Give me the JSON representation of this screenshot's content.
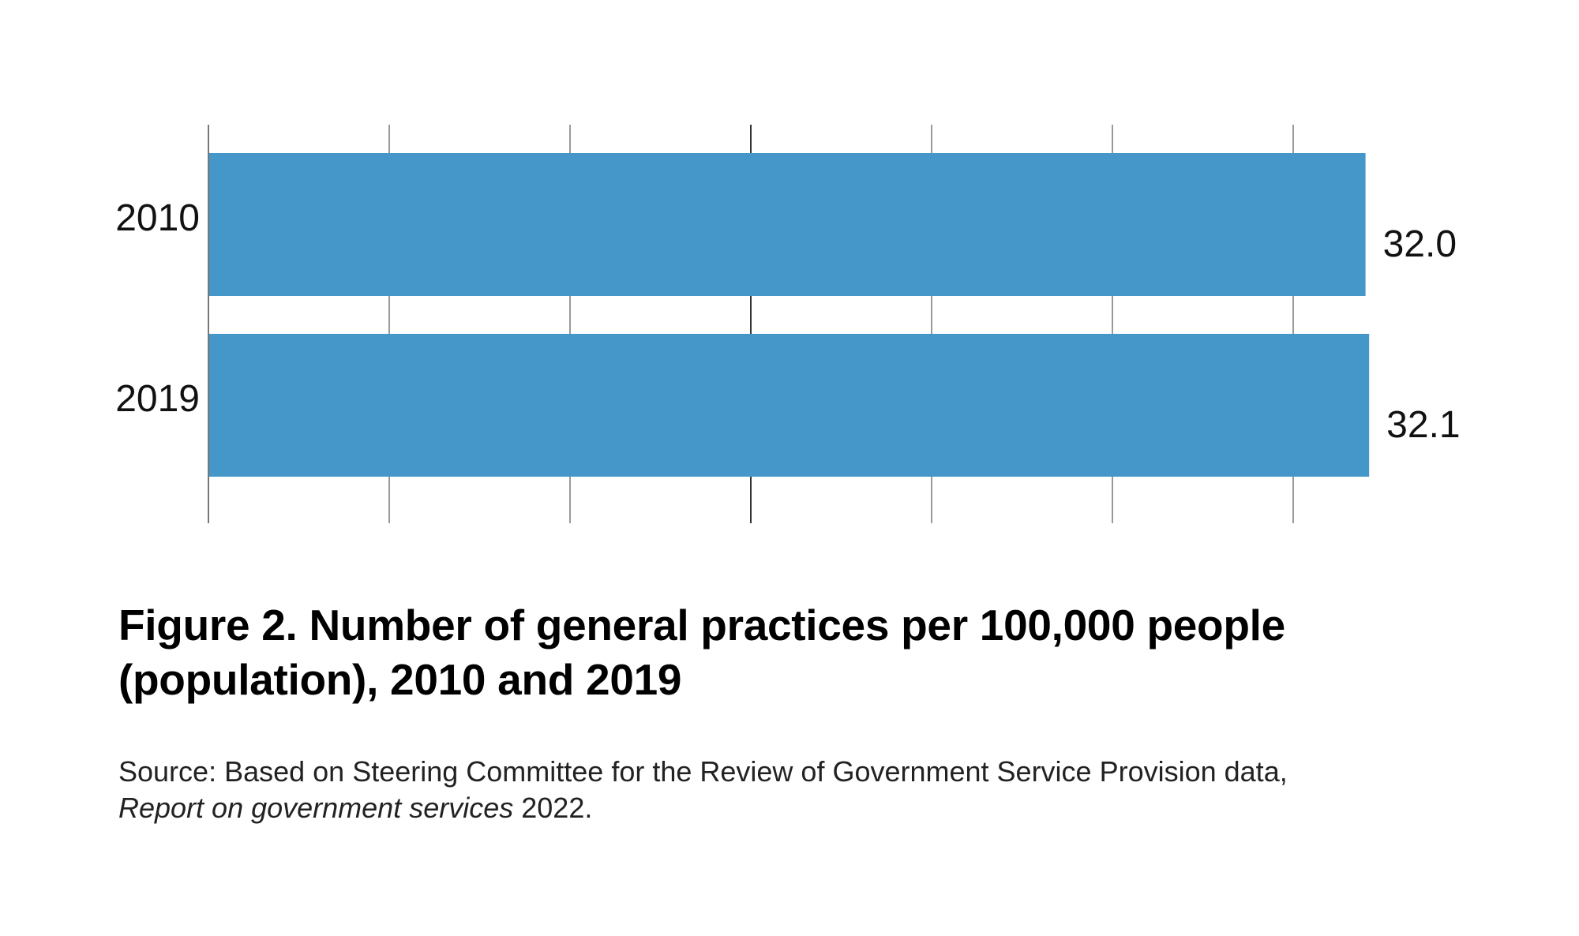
{
  "chart_data": {
    "type": "bar",
    "orientation": "horizontal",
    "title": "Figure 2. Number of general practices per 100,000 people (population), 2010 and 2019",
    "xlabel": "",
    "ylabel": "",
    "categories": [
      "2010",
      "2019"
    ],
    "values": [
      32.0,
      32.1
    ],
    "value_labels": [
      "32.0",
      "32.1"
    ],
    "xlim": [
      0,
      35
    ],
    "gridlines": [
      0,
      5,
      10,
      15,
      20,
      25,
      30
    ],
    "emphasized_gridline": 15,
    "tick_labels_shown": false,
    "grid": true,
    "legend": "none",
    "bar_color": "#4597C9",
    "gridline_color": "#9a9a9a",
    "emphasized_gridline_color": "#333333"
  },
  "caption": {
    "title": "Figure 2. Number of general practices per 100,000 people (population), 2010 and 2019",
    "source_prefix": "Source: Based on Steering Committee for the Review of Government Service Provision data, ",
    "source_italic": "Report on government services",
    "source_suffix": " 2022."
  }
}
